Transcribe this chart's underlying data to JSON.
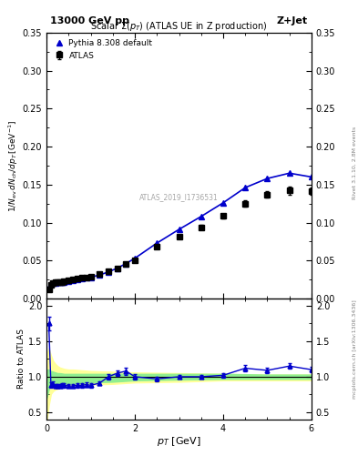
{
  "title_top": "13000 GeV pp",
  "title_right": "Z+Jet",
  "plot_title": "Scalar Σ(p_T) (ATLAS UE in Z production)",
  "ylabel_main": "1/N_{ev} dN_{ch}/dp_T [GeV^{-1}]",
  "ylabel_ratio": "Ratio to ATLAS",
  "xlabel": "p_T [GeV]",
  "watermark": "ATLAS_2019_I1736531",
  "rivet_label": "Rivet 3.1.10, 2.8M events",
  "arxiv_label": "mcplots.cern.ch [arXiv:1306.3436]",
  "atlas_x": [
    0.05,
    0.1,
    0.15,
    0.2,
    0.25,
    0.3,
    0.35,
    0.4,
    0.5,
    0.6,
    0.7,
    0.8,
    0.9,
    1.0,
    1.2,
    1.4,
    1.6,
    1.8,
    2.0,
    2.5,
    3.0,
    3.5,
    4.0,
    4.5,
    5.0,
    5.5,
    6.0
  ],
  "atlas_y": [
    0.012,
    0.018,
    0.02,
    0.021,
    0.021,
    0.022,
    0.022,
    0.023,
    0.024,
    0.025,
    0.026,
    0.027,
    0.028,
    0.029,
    0.032,
    0.036,
    0.04,
    0.045,
    0.05,
    0.068,
    0.082,
    0.094,
    0.109,
    0.125,
    0.137,
    0.142,
    0.141
  ],
  "atlas_yerr": [
    0.002,
    0.001,
    0.001,
    0.001,
    0.001,
    0.001,
    0.001,
    0.001,
    0.001,
    0.001,
    0.001,
    0.001,
    0.001,
    0.001,
    0.001,
    0.001,
    0.001,
    0.001,
    0.002,
    0.002,
    0.002,
    0.003,
    0.003,
    0.004,
    0.004,
    0.005,
    0.005
  ],
  "pythia_x": [
    0.05,
    0.1,
    0.15,
    0.2,
    0.25,
    0.3,
    0.35,
    0.4,
    0.5,
    0.6,
    0.7,
    0.8,
    0.9,
    1.0,
    1.2,
    1.4,
    1.6,
    1.8,
    2.0,
    2.5,
    3.0,
    3.5,
    4.0,
    4.5,
    5.0,
    5.5,
    6.0
  ],
  "pythia_y": [
    0.015,
    0.019,
    0.02,
    0.02,
    0.021,
    0.021,
    0.022,
    0.022,
    0.023,
    0.024,
    0.025,
    0.026,
    0.027,
    0.028,
    0.031,
    0.035,
    0.04,
    0.046,
    0.053,
    0.073,
    0.091,
    0.108,
    0.126,
    0.146,
    0.158,
    0.165,
    0.16
  ],
  "ratio_x": [
    0.05,
    0.1,
    0.15,
    0.2,
    0.25,
    0.3,
    0.35,
    0.4,
    0.5,
    0.6,
    0.7,
    0.8,
    0.9,
    1.0,
    1.2,
    1.4,
    1.6,
    1.8,
    2.0,
    2.5,
    3.0,
    3.5,
    4.0,
    4.5,
    5.0,
    5.5,
    6.0
  ],
  "ratio_y": [
    1.75,
    0.88,
    0.9,
    0.87,
    0.87,
    0.87,
    0.88,
    0.88,
    0.87,
    0.87,
    0.88,
    0.88,
    0.89,
    0.88,
    0.91,
    1.0,
    1.05,
    1.08,
    1.0,
    0.97,
    1.0,
    1.0,
    1.02,
    1.12,
    1.09,
    1.15,
    1.1
  ],
  "ratio_yerr": [
    0.1,
    0.04,
    0.03,
    0.03,
    0.03,
    0.03,
    0.03,
    0.03,
    0.03,
    0.03,
    0.03,
    0.03,
    0.03,
    0.03,
    0.03,
    0.04,
    0.04,
    0.05,
    0.04,
    0.03,
    0.03,
    0.03,
    0.03,
    0.04,
    0.04,
    0.04,
    0.04
  ],
  "green_band_x": [
    0.0,
    0.05,
    0.1,
    0.15,
    0.2,
    0.25,
    0.3,
    0.4,
    0.5,
    0.6,
    0.8,
    1.0,
    1.5,
    2.0,
    3.0,
    4.0,
    5.0,
    6.0
  ],
  "green_band_lo": [
    0.7,
    0.82,
    0.9,
    0.91,
    0.9,
    0.9,
    0.9,
    0.9,
    0.9,
    0.9,
    0.91,
    0.92,
    0.93,
    0.95,
    0.96,
    0.97,
    0.97,
    0.97
  ],
  "green_band_hi": [
    1.1,
    1.1,
    1.08,
    1.07,
    1.06,
    1.05,
    1.05,
    1.04,
    1.04,
    1.04,
    1.04,
    1.04,
    1.04,
    1.04,
    1.04,
    1.04,
    1.03,
    1.03
  ],
  "yellow_band_lo": [
    0.35,
    0.6,
    0.76,
    0.8,
    0.82,
    0.83,
    0.84,
    0.85,
    0.86,
    0.87,
    0.88,
    0.89,
    0.9,
    0.92,
    0.93,
    0.95,
    0.95,
    0.95
  ],
  "yellow_band_hi": [
    1.3,
    1.4,
    1.3,
    1.22,
    1.18,
    1.15,
    1.13,
    1.11,
    1.1,
    1.1,
    1.09,
    1.08,
    1.07,
    1.06,
    1.05,
    1.04,
    1.03,
    1.03
  ],
  "main_ylim": [
    0.0,
    0.35
  ],
  "ratio_ylim": [
    0.4,
    2.1
  ],
  "xlim": [
    0.0,
    6.0
  ],
  "color_atlas": "#000000",
  "color_pythia": "#0000cc",
  "color_green": "#90EE90",
  "color_yellow": "#FFFF99",
  "bg_color": "#ffffff"
}
